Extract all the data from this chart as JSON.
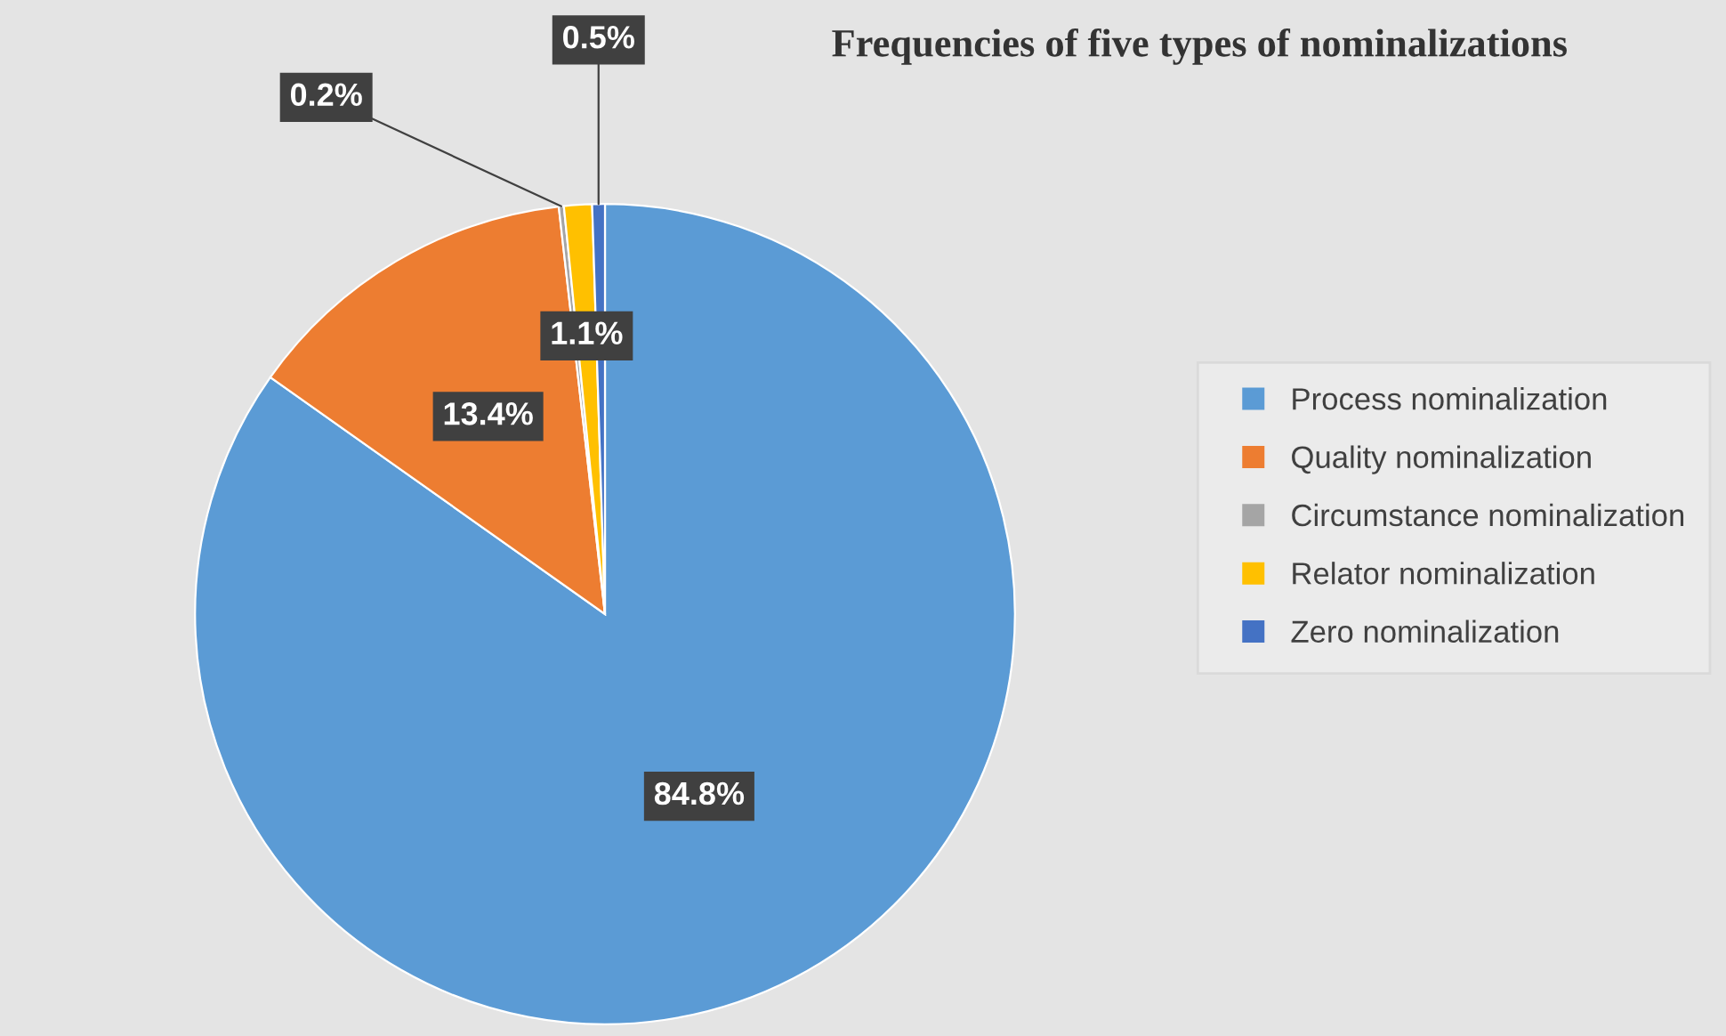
{
  "chart_data": {
    "type": "pie",
    "title": "Frequencies of five types of nominalizations",
    "categories": [
      "Process nominalization",
      "Quality nominalization",
      "Circumstance nominalization",
      "Relator nominalization",
      "Zero nominalization"
    ],
    "values": [
      84.8,
      13.4,
      0.2,
      1.1,
      0.5
    ],
    "colors": [
      "#5b9bd5",
      "#ed7d31",
      "#a5a5a5",
      "#ffc000",
      "#4472c4"
    ],
    "value_labels": [
      "84.8%",
      "13.4%",
      "0.2%",
      "1.1%",
      "0.5%"
    ],
    "legend": "right"
  }
}
